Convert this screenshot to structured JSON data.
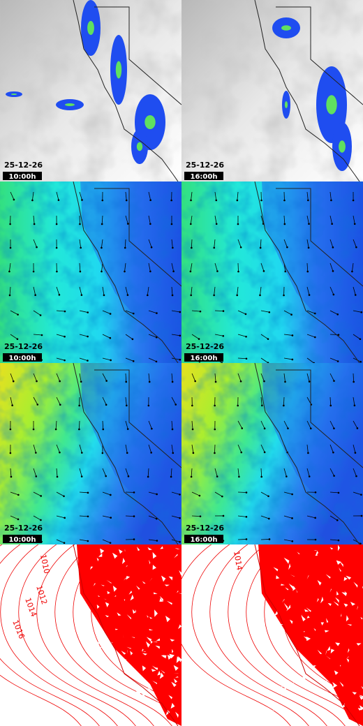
{
  "panels": [
    {
      "date": "25-12-26",
      "time": "10:00h"
    },
    {
      "date": "25-12-26",
      "time": "16:00h"
    },
    {
      "date": "25-12-26",
      "time": "10:00h"
    },
    {
      "date": "25-12-26",
      "time": "16:00h"
    },
    {
      "date": "25-12-26",
      "time": "10:00h"
    },
    {
      "date": "25-12-26",
      "time": "16:00h"
    }
  ],
  "pressure_maps": [
    {
      "labels": [
        "1010",
        "1012",
        "1014",
        "1016"
      ]
    },
    {
      "labels": [
        "1014"
      ]
    }
  ]
}
